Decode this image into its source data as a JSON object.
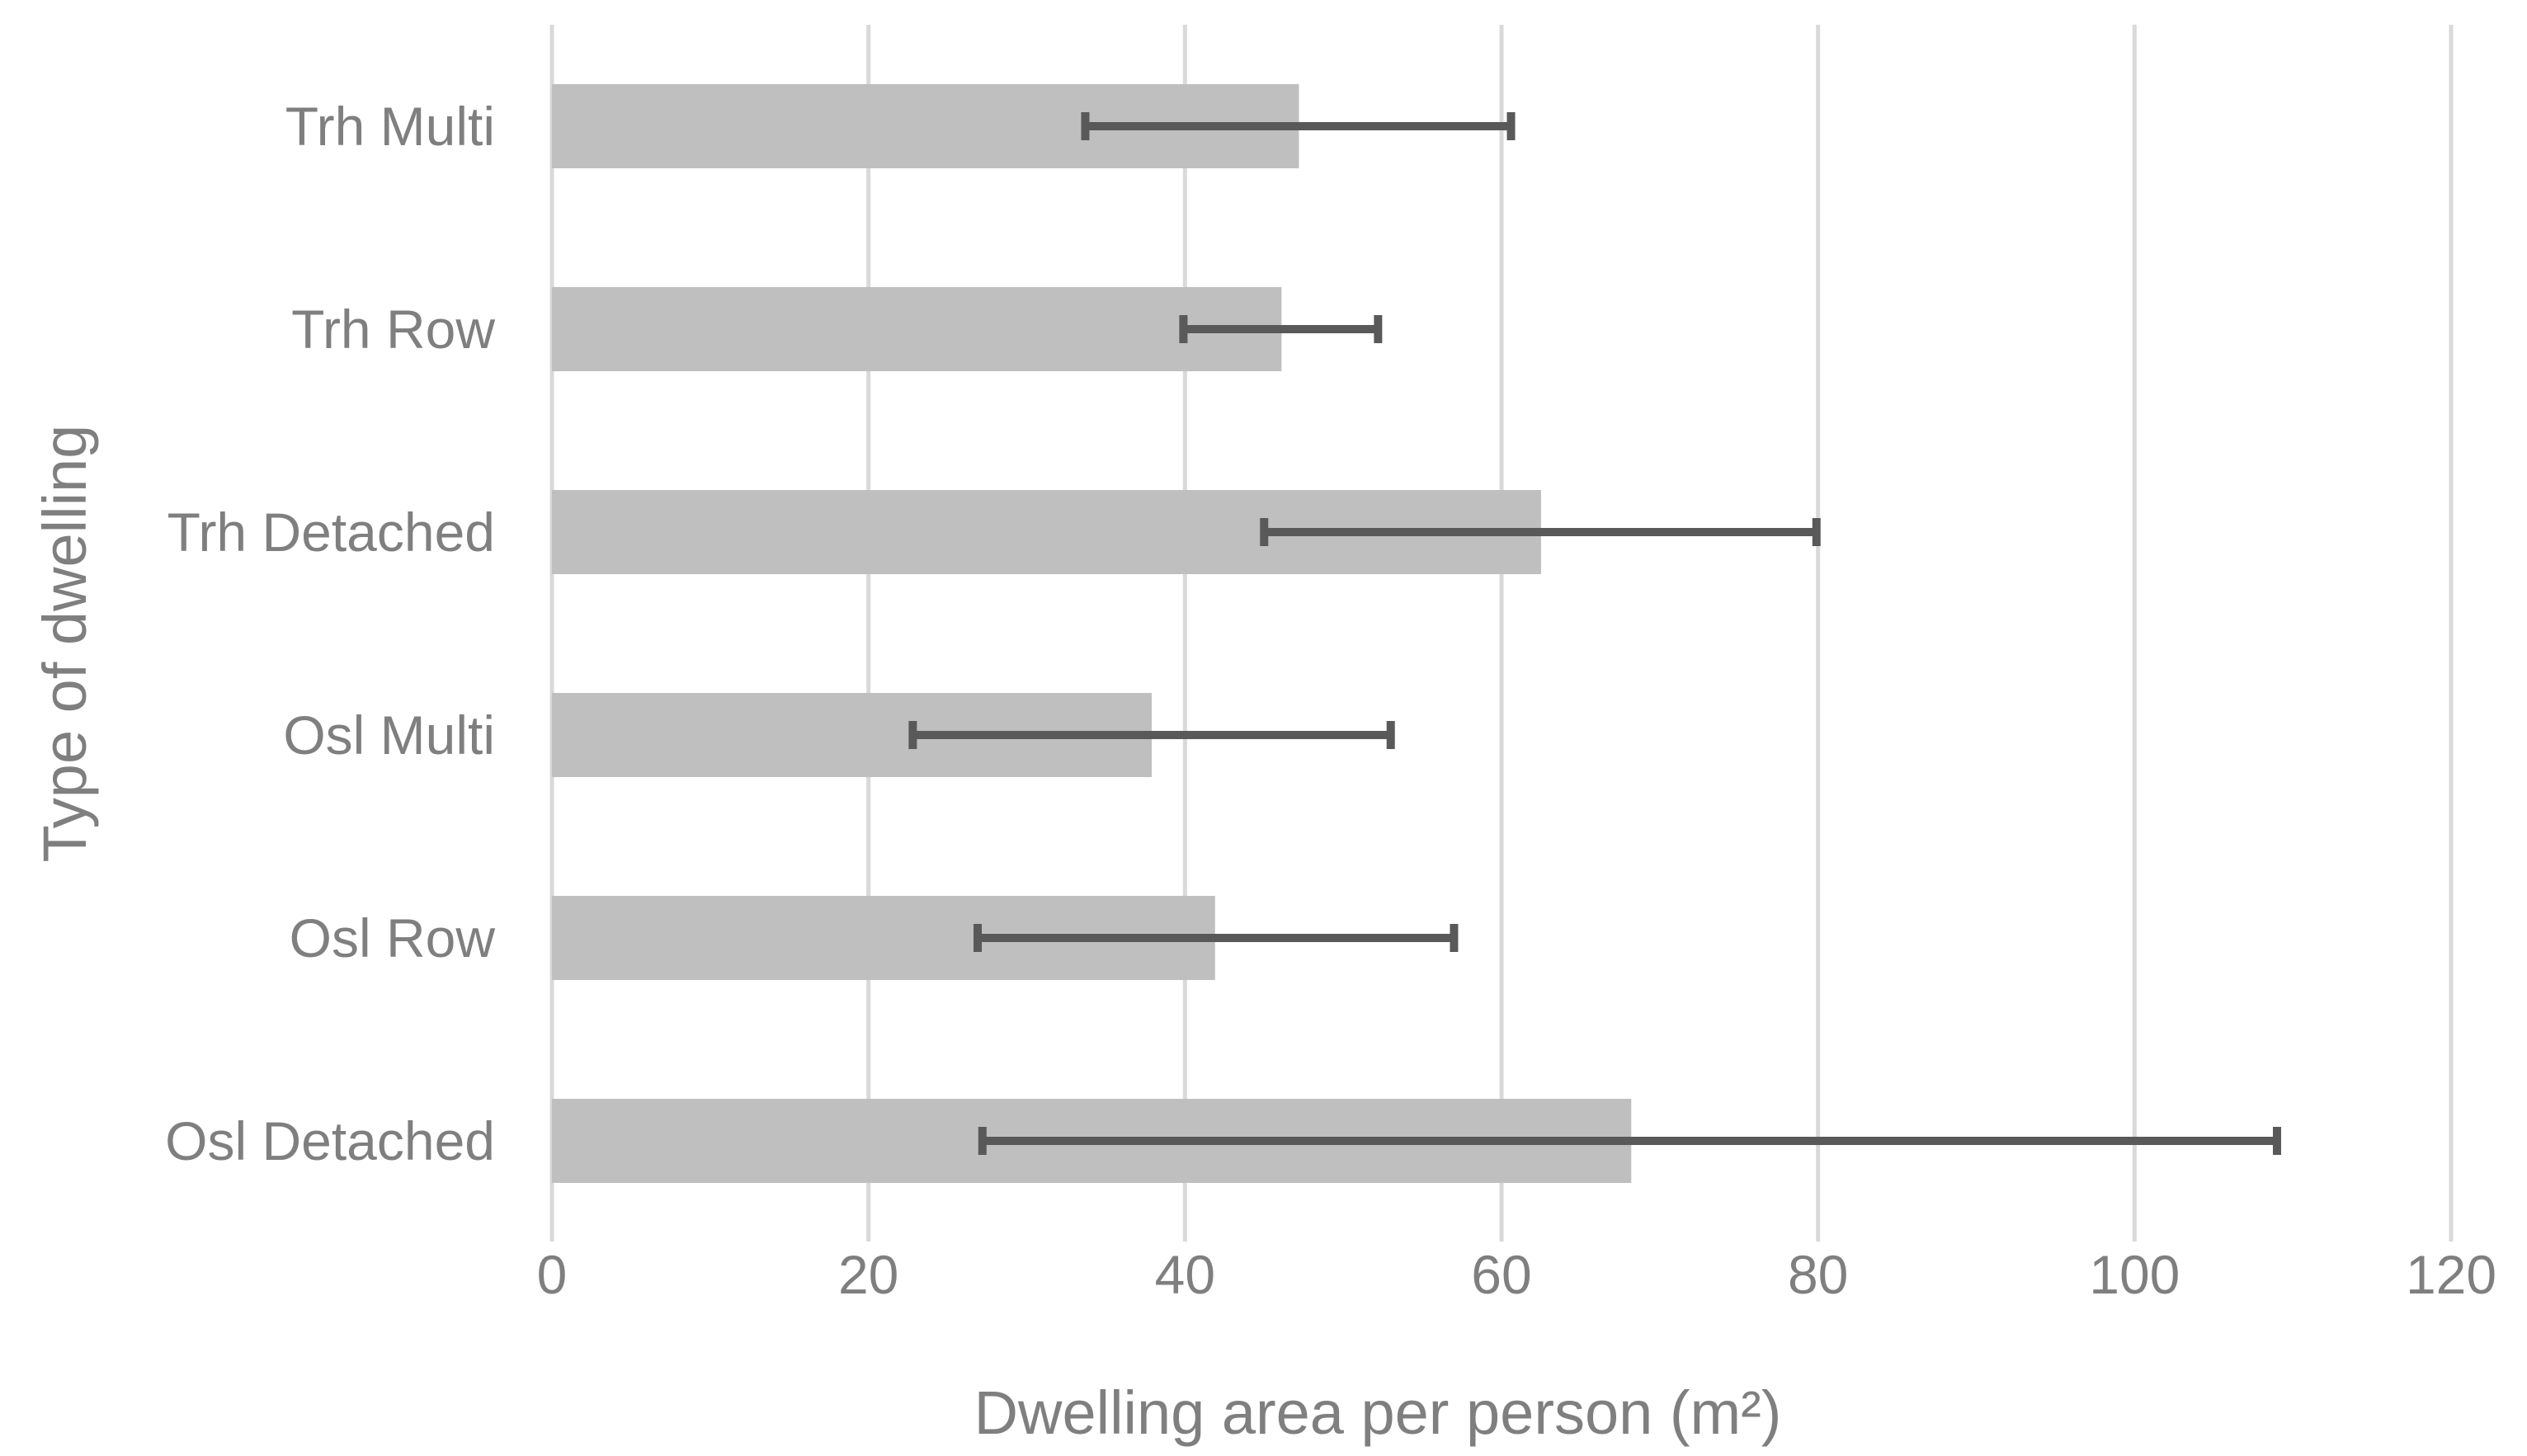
{
  "chart_data": {
    "type": "bar",
    "orientation": "horizontal",
    "categories": [
      "Trh Multi",
      "Trh Row",
      "Trh Detached",
      "Osl Multi",
      "Osl Row",
      "Osl Detached"
    ],
    "values": [
      47.2,
      46.1,
      62.5,
      37.9,
      41.9,
      68.2
    ],
    "error_low": [
      33.7,
      39.9,
      45.0,
      22.8,
      26.9,
      27.2
    ],
    "error_high": [
      60.6,
      52.2,
      79.9,
      53.0,
      57.0,
      109.0
    ],
    "xlabel": "Dwelling area per person (m²)",
    "ylabel": "Type of dwelling",
    "xlim": [
      0,
      120
    ],
    "xticks": [
      0,
      20,
      40,
      60,
      80,
      100,
      120
    ],
    "xtick_labels": [
      "0",
      "20",
      "40",
      "60",
      "80",
      "100",
      "120"
    ],
    "grid": "vertical",
    "legend": "none"
  },
  "colors": {
    "bar": "#bfbfbf",
    "error_bar": "#595959",
    "gridline": "#d9d9d9",
    "text": "#7f7f7f"
  }
}
